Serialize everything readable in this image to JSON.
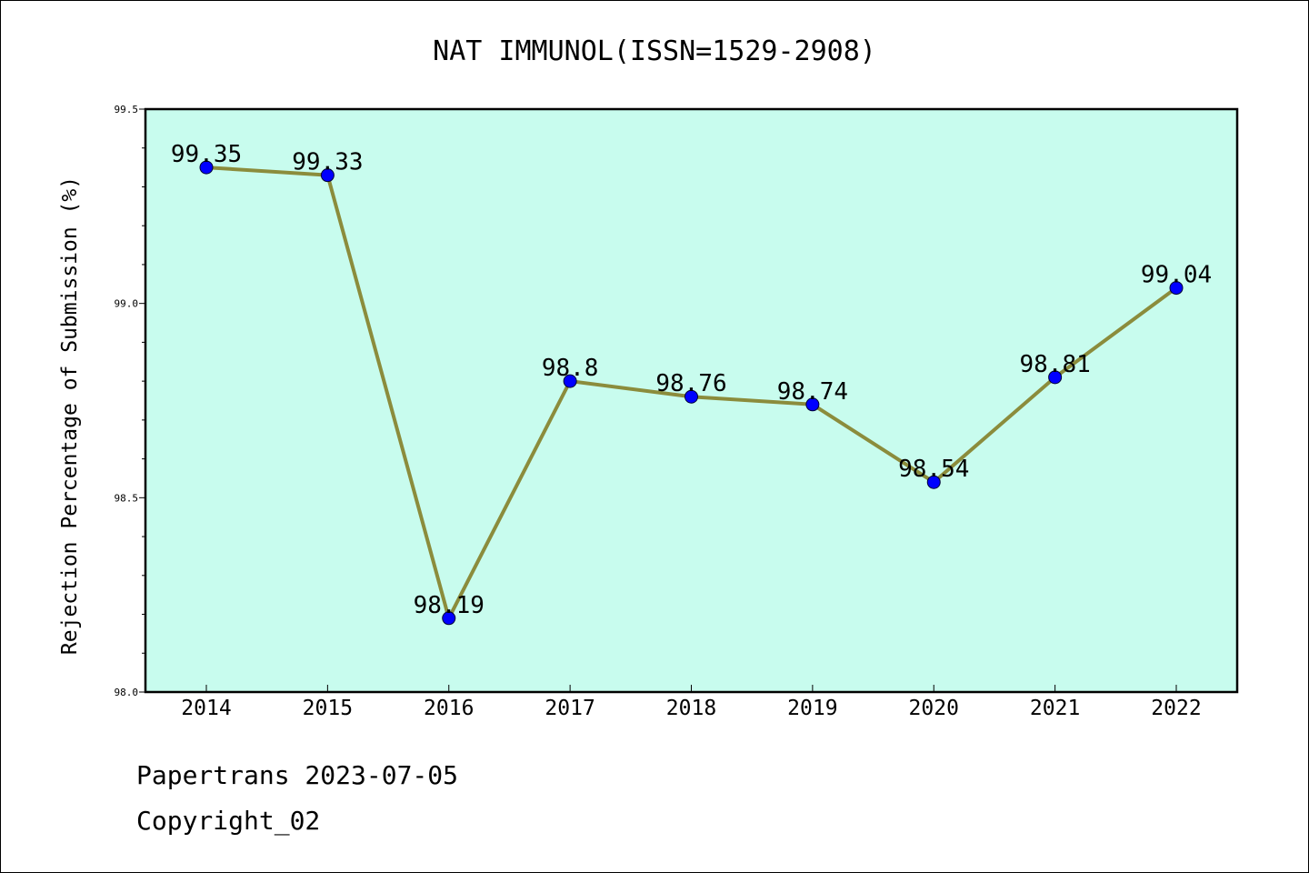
{
  "chart_data": {
    "type": "line",
    "title": "NAT IMMUNOL(ISSN=1529-2908)",
    "xlabel": "",
    "ylabel": "Rejection Percentage of Submission (%)",
    "categories": [
      "2014",
      "2015",
      "2016",
      "2017",
      "2018",
      "2019",
      "2020",
      "2021",
      "2022"
    ],
    "series": [
      {
        "values": [
          99.35,
          99.33,
          98.19,
          98.8,
          98.76,
          98.74,
          98.54,
          98.81,
          99.04
        ],
        "data_labels": [
          "99.35",
          "99.33",
          "98.19",
          "98.8",
          "98.76",
          "98.74",
          "98.54",
          "98.81",
          "99.04"
        ]
      }
    ],
    "ylim": [
      98.0,
      99.5
    ],
    "yticks": [
      "98.0",
      "98.5",
      "99.0",
      "99.5"
    ],
    "grid": false,
    "colors": {
      "plot_background": "#c8fcee",
      "line": "#8b8c3c",
      "marker": "#0000ff"
    }
  },
  "footer": {
    "line1": "Papertrans 2023-07-05",
    "line2": "Copyright_02"
  }
}
